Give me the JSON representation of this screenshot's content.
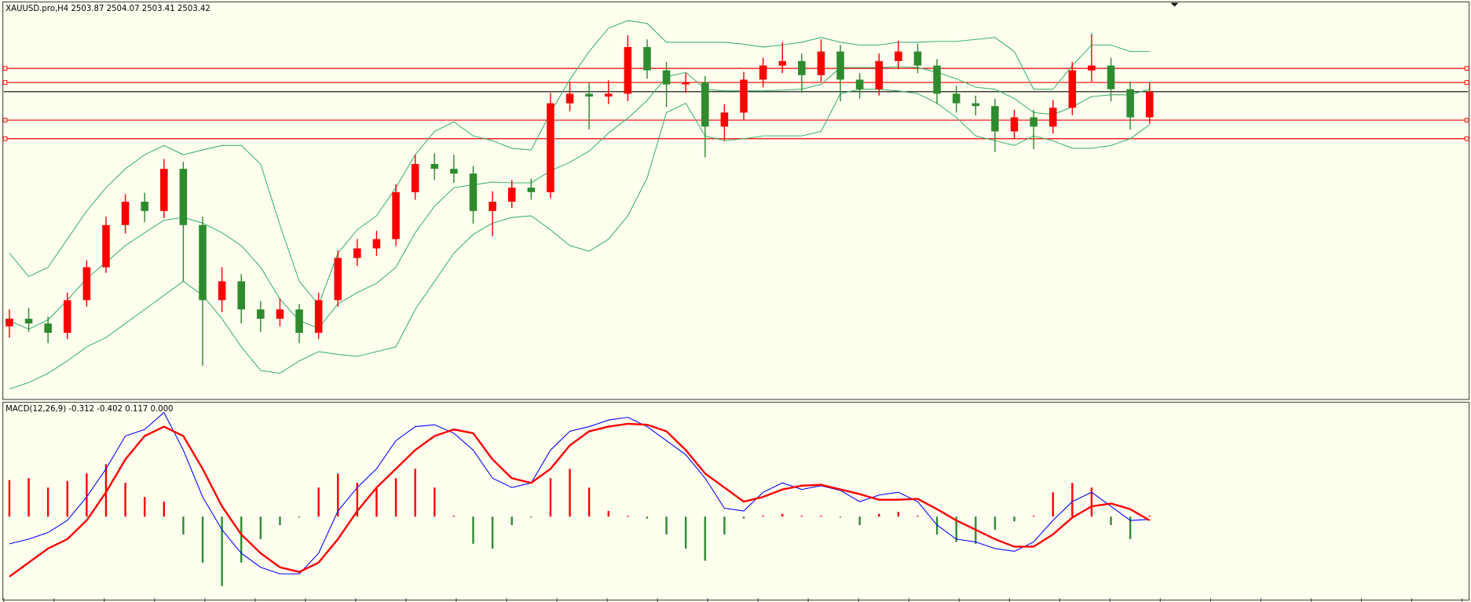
{
  "chart_data": [
    {
      "type": "candlestick",
      "title": "XAUUSD.pro,H4  2503.87 2504.07 2503.41 2503.42",
      "ylim": [
        2395,
        2536
      ],
      "up_color": "#ff0000",
      "down_color": "#2e8b2e",
      "open": [
        2420.0,
        2422.7,
        2421.0,
        2417.7,
        2429.3,
        2441.0,
        2456.0,
        2464.3,
        2461.0,
        2476.0,
        2456.0,
        2429.3,
        2436.0,
        2426.0,
        2422.7,
        2426.0,
        2417.7,
        2429.3,
        2444.3,
        2447.7,
        2451.0,
        2467.7,
        2477.7,
        2476.0,
        2474.3,
        2461.0,
        2464.3,
        2469.3,
        2467.7,
        2499.3,
        2502.7,
        2501.7,
        2502.7,
        2519.3,
        2511.0,
        2506.0,
        2506.7,
        2491.0,
        2496.0,
        2507.7,
        2512.7,
        2514.3,
        2509.3,
        2517.7,
        2507.7,
        2504.3,
        2514.3,
        2517.7,
        2512.7,
        2502.7,
        2499.3,
        2498.3,
        2489.3,
        2494.3,
        2491.0,
        2497.7,
        2511.0,
        2512.7,
        2504.3,
        2494.3
      ],
      "high": [
        2426.0,
        2426.5,
        2423.5,
        2432.0,
        2443.5,
        2459.0,
        2467.0,
        2467.5,
        2479.5,
        2478.5,
        2459.0,
        2441.0,
        2438.5,
        2429.0,
        2430.0,
        2428.0,
        2432.0,
        2447.0,
        2451.0,
        2454.0,
        2470.5,
        2481.0,
        2481.5,
        2481.0,
        2477.0,
        2468.0,
        2472.0,
        2472.5,
        2503.0,
        2507.0,
        2506.5,
        2507.5,
        2523.5,
        2522.0,
        2514.0,
        2510.0,
        2509.0,
        2499.0,
        2510.5,
        2515.5,
        2521.0,
        2517.0,
        2522.0,
        2520.0,
        2510.0,
        2517.0,
        2521.5,
        2520.5,
        2515.0,
        2505.5,
        2502.0,
        2501.0,
        2497.0,
        2497.0,
        2500.5,
        2514.0,
        2524.0,
        2515.5,
        2507.0,
        2506.5
      ],
      "low": [
        2416.0,
        2418.0,
        2414.0,
        2415.5,
        2427.0,
        2439.0,
        2453.0,
        2457.0,
        2458.5,
        2436.0,
        2406.0,
        2425.0,
        2421.0,
        2418.0,
        2420.0,
        2414.0,
        2415.5,
        2427.0,
        2441.5,
        2445.0,
        2448.5,
        2465.0,
        2472.0,
        2471.0,
        2456.5,
        2452.0,
        2462.0,
        2465.0,
        2465.5,
        2496.5,
        2490.0,
        2499.0,
        2500.0,
        2508.0,
        2498.0,
        2503.0,
        2480.0,
        2486.0,
        2493.5,
        2505.0,
        2510.0,
        2503.0,
        2507.0,
        2500.0,
        2501.0,
        2502.0,
        2511.5,
        2510.0,
        2499.0,
        2496.0,
        2495.0,
        2482.0,
        2486.5,
        2483.0,
        2488.5,
        2495.0,
        2507.0,
        2500.0,
        2490.0,
        2492.0
      ],
      "close": [
        2422.7,
        2421.0,
        2417.7,
        2429.3,
        2441.0,
        2456.0,
        2464.3,
        2461.0,
        2476.0,
        2456.0,
        2429.3,
        2436.0,
        2426.0,
        2422.7,
        2426.0,
        2417.7,
        2429.3,
        2444.3,
        2447.7,
        2451.0,
        2467.7,
        2477.7,
        2476.0,
        2474.3,
        2461.0,
        2464.3,
        2469.3,
        2467.7,
        2499.3,
        2502.7,
        2501.7,
        2502.7,
        2519.3,
        2511.0,
        2506.0,
        2506.7,
        2491.0,
        2496.0,
        2507.7,
        2512.7,
        2514.3,
        2509.3,
        2517.7,
        2507.7,
        2504.3,
        2514.3,
        2517.7,
        2512.7,
        2502.7,
        2499.3,
        2498.3,
        2489.3,
        2494.3,
        2491.0,
        2497.7,
        2511.0,
        2512.7,
        2504.3,
        2494.3,
        2503.4
      ],
      "bollinger": {
        "color": "#3cb371",
        "upper": [
          2446.0,
          2437.7,
          2441.0,
          2451.0,
          2461.0,
          2469.3,
          2476.0,
          2481.0,
          2484.3,
          2481.0,
          2482.7,
          2484.3,
          2484.3,
          2477.7,
          2456.0,
          2436.0,
          2427.7,
          2446.0,
          2454.3,
          2459.3,
          2469.3,
          2481.0,
          2489.3,
          2492.7,
          2487.7,
          2486.0,
          2483.3,
          2482.7,
          2496.0,
          2507.7,
          2517.7,
          2526.0,
          2528.7,
          2527.7,
          2521.0,
          2521.0,
          2521.0,
          2521.0,
          2520.3,
          2519.3,
          2520.0,
          2521.0,
          2522.7,
          2521.0,
          2520.0,
          2520.0,
          2521.0,
          2521.0,
          2521.3,
          2521.3,
          2522.0,
          2522.7,
          2517.7,
          2504.3,
          2504.3,
          2512.7,
          2520.0,
          2520.0,
          2517.7,
          2517.7
        ],
        "middle": [
          2422.0,
          2419.0,
          2422.3,
          2429.3,
          2437.0,
          2442.7,
          2448.7,
          2453.3,
          2457.7,
          2458.7,
          2456.7,
          2453.3,
          2448.7,
          2441.0,
          2429.7,
          2422.0,
          2419.3,
          2428.0,
          2432.0,
          2435.3,
          2441.0,
          2453.3,
          2462.7,
          2469.3,
          2470.3,
          2471.3,
          2471.0,
          2471.0,
          2475.3,
          2478.3,
          2482.3,
          2488.7,
          2494.0,
          2500.3,
          2508.7,
          2510.3,
          2504.3,
          2503.7,
          2503.7,
          2503.7,
          2504.0,
          2504.3,
          2506.0,
          2512.0,
          2512.0,
          2512.0,
          2512.3,
          2512.0,
          2510.3,
          2508.0,
          2505.0,
          2504.3,
          2501.0,
          2496.0,
          2495.3,
          2498.0,
          2501.7,
          2502.3,
          2502.3,
          2504.3
        ],
        "lower": [
          2397.7,
          2400.0,
          2403.3,
          2407.7,
          2412.7,
          2416.0,
          2421.0,
          2426.0,
          2431.0,
          2436.0,
          2431.0,
          2422.7,
          2412.7,
          2404.3,
          2403.3,
          2407.7,
          2411.0,
          2410.0,
          2409.3,
          2411.0,
          2412.7,
          2426.0,
          2436.0,
          2446.0,
          2452.7,
          2456.7,
          2458.7,
          2459.3,
          2454.3,
          2448.7,
          2446.7,
          2451.0,
          2459.3,
          2472.7,
          2496.0,
          2499.3,
          2487.7,
          2486.0,
          2486.7,
          2487.7,
          2487.7,
          2487.7,
          2489.3,
          2502.7,
          2504.3,
          2504.3,
          2503.7,
          2502.7,
          2499.3,
          2494.3,
          2487.7,
          2486.0,
          2484.3,
          2487.7,
          2486.0,
          2483.3,
          2483.3,
          2484.3,
          2486.7,
          2491.7
        ]
      },
      "levels": [
        2511.7,
        2506.7,
        2493.3,
        2486.7
      ],
      "level_color": "#ff0000",
      "bid": 2503.42,
      "bid_color": "#000000"
    },
    {
      "type": "macd",
      "title": "MACD(12,26,9) -0.312 -0.402 0.117 0.000",
      "ylim": [
        -8.9,
        12.1
      ],
      "macd": {
        "color": "#0000ff",
        "values": [
          -2.9,
          -2.4,
          -1.7,
          -0.4,
          2.1,
          5.1,
          8.6,
          9.3,
          11.1,
          7.1,
          2.1,
          -1.4,
          -3.9,
          -5.4,
          -6.1,
          -6.1,
          -3.9,
          0.6,
          3.1,
          5.1,
          8.1,
          9.6,
          9.8,
          8.9,
          7.1,
          4.1,
          3.1,
          3.6,
          7.1,
          9.1,
          9.6,
          10.3,
          10.6,
          9.6,
          8.1,
          6.6,
          4.1,
          0.9,
          0.6,
          2.6,
          3.6,
          2.9,
          3.3,
          2.8,
          1.6,
          2.3,
          2.6,
          1.6,
          -0.9,
          -2.4,
          -2.7,
          -3.4,
          -3.7,
          -2.7,
          -0.4,
          1.6,
          2.6,
          1.1,
          -0.4,
          -0.3
        ]
      },
      "signal": {
        "color": "#ff0000",
        "values": [
          -6.4,
          -4.9,
          -3.4,
          -2.4,
          -0.4,
          2.6,
          6.1,
          8.6,
          9.6,
          8.6,
          5.1,
          1.1,
          -1.9,
          -3.9,
          -5.4,
          -5.9,
          -4.9,
          -2.4,
          0.6,
          3.1,
          5.1,
          7.1,
          8.6,
          9.3,
          8.9,
          6.1,
          4.1,
          3.6,
          5.1,
          7.6,
          9.1,
          9.6,
          9.9,
          9.8,
          9.1,
          7.1,
          4.6,
          3.1,
          1.6,
          2.1,
          2.9,
          3.3,
          3.4,
          2.9,
          2.4,
          1.8,
          1.8,
          1.9,
          0.8,
          -0.4,
          -1.4,
          -2.4,
          -3.2,
          -3.2,
          -1.9,
          -0.1,
          1.1,
          1.4,
          0.8,
          -0.4
        ]
      },
      "histogram": {
        "up_color": "#ff0000",
        "down_color": "#2e8b2e",
        "values": [
          3.9,
          4.1,
          3.1,
          3.8,
          4.6,
          5.6,
          3.6,
          2.1,
          1.6,
          -1.9,
          -4.9,
          -7.4,
          -4.9,
          -2.4,
          -0.9,
          -0.1,
          3.1,
          4.6,
          3.6,
          3.1,
          4.1,
          5.1,
          3.1,
          0.1,
          -2.9,
          -3.4,
          -0.9,
          -0.1,
          4.1,
          5.1,
          3.1,
          0.6,
          0.1,
          -0.2,
          -1.9,
          -3.4,
          -4.7,
          -1.9,
          -0.2,
          0.1,
          0.3,
          0.1,
          0.1,
          -0.1,
          -0.9,
          0.3,
          0.5,
          0.1,
          -1.9,
          -2.7,
          -2.9,
          -1.4,
          -0.5,
          0.1,
          2.6,
          3.6,
          3.1,
          -0.9,
          -2.4,
          0.1
        ]
      }
    }
  ]
}
